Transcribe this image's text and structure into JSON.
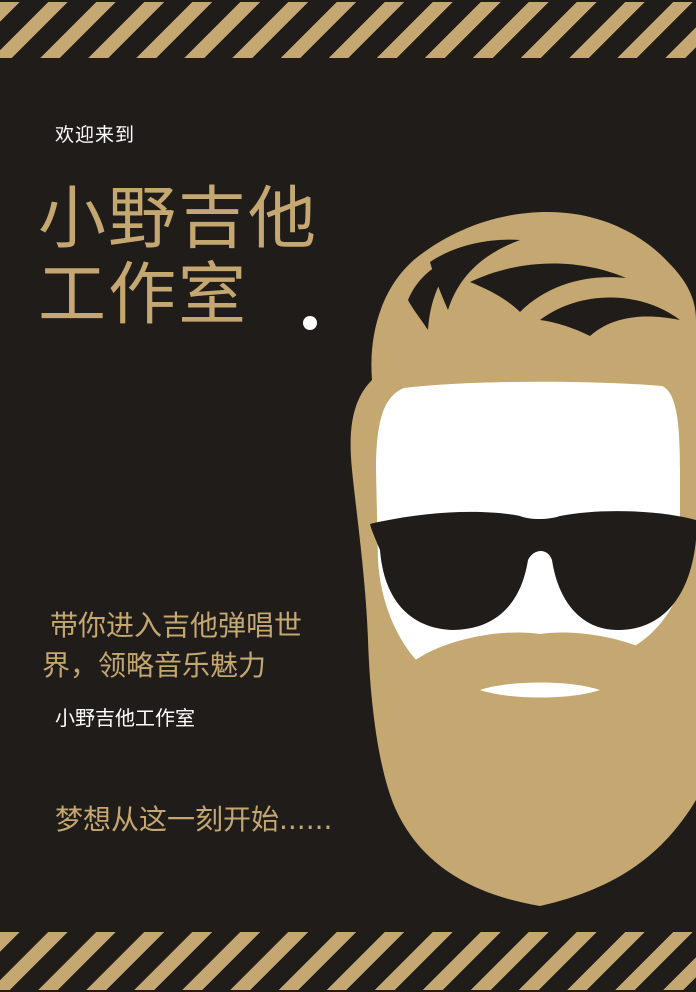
{
  "poster": {
    "welcome": "欢迎来到",
    "title": "小野吉他\n工作室",
    "tagline": "带你进入吉他弹唱世界，领略音乐魅力",
    "studio_name": "小野吉他工作室",
    "slogan": "梦想从这一刻开始......"
  },
  "colors": {
    "background": "#1f1c19",
    "accent_gold": "#c4a771",
    "white": "#ffffff"
  },
  "icons": {
    "portrait": "bearded-man-sunglasses-illustration"
  }
}
